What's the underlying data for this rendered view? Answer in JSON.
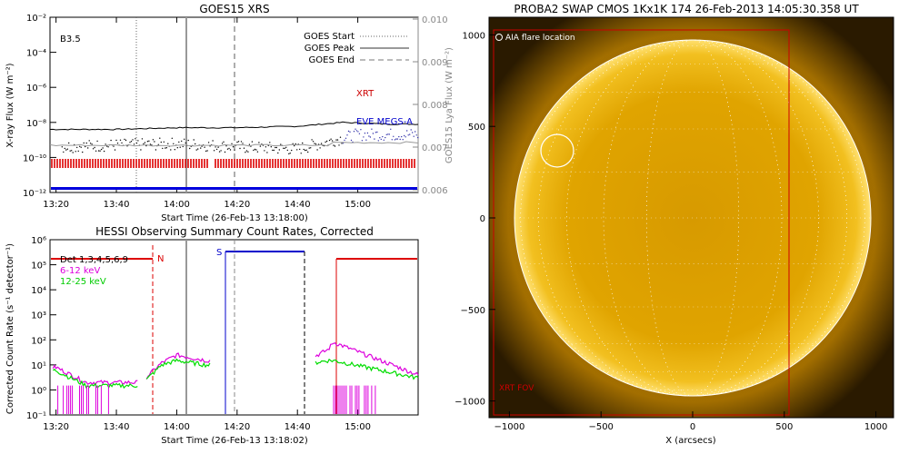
{
  "goes": {
    "title": "GOES15 XRS",
    "class_label": "B3.5",
    "ylabel_left": "X-ray Flux (W m⁻²)",
    "ylabel_right": "GOES15 Lya Flux (W m⁻²)",
    "xlabel": "Start Time (26-Feb-13 13:18:00)",
    "xticks": [
      "13:20",
      "13:40",
      "14:00",
      "14:20",
      "14:40",
      "15:00"
    ],
    "yticks_left": [
      "10⁻¹²",
      "10⁻¹⁰",
      "10⁻⁸",
      "10⁻⁶",
      "10⁻⁴",
      "10⁻²"
    ],
    "yticks_right": [
      "0.006",
      "0.007",
      "0.008",
      "0.009",
      "0.010"
    ],
    "legend": [
      "GOES Start",
      "GOES Peak",
      "GOES End"
    ],
    "label_xrt": "XRT",
    "label_eve": "EVE MEGS-A",
    "colors": {
      "xrt": "#cc0000",
      "eve": "#0000cc",
      "obs": "#dd0000",
      "blue_bar": "#0000dd"
    }
  },
  "hessi": {
    "title": "HESSI Observing Summary Count Rates, Corrected",
    "ylabel": "Corrected Count Rate (s⁻¹ detector⁻¹)",
    "xlabel": "Start Time (26-Feb-13 13:18:02)",
    "xticks": [
      "13:20",
      "13:40",
      "14:00",
      "14:20",
      "14:40",
      "15:00"
    ],
    "yticks": [
      "10⁻¹",
      "10⁰",
      "10¹",
      "10²",
      "10³",
      "10⁴",
      "10⁵",
      "10⁶"
    ],
    "legend": [
      "Det 1,3,4,5,6,9",
      "6-12 keV",
      "12-25 keV"
    ],
    "legend_colors": [
      "#000000",
      "#dd00dd",
      "#00cc00"
    ],
    "marker_n": "N",
    "marker_s": "S",
    "colors": {
      "low": "#dd00dd",
      "high": "#00dd00",
      "night": "#dd0000",
      "saa": "#0000cc"
    }
  },
  "swap": {
    "title": "PROBA2 SWAP CMOS 1Kx1K 174 26-Feb-2013 14:05:30.358 UT",
    "flare_label": "AIA flare location",
    "fov_label": "XRT FOV",
    "xlabel": "X (arcsecs)",
    "xticks": [
      "−1000",
      "−500",
      "0",
      "500",
      "1000"
    ],
    "yticks": [
      "1000",
      "500",
      "0",
      "−500",
      "−1000"
    ],
    "colors": {
      "disk": "#e8a800",
      "bg": "#2a1a00",
      "fov": "#cc0000"
    }
  },
  "chart_data": [
    {
      "type": "line",
      "title": "GOES15 XRS",
      "xlabel": "Start Time (26-Feb-13 13:18:00)",
      "ylabel": "X-ray Flux (W m⁻²)",
      "y_scale": "log",
      "ylim": [
        1e-12,
        0.01
      ],
      "xlim": [
        "13:18",
        "15:20"
      ],
      "markers": {
        "GOES Start": "13:46",
        "GOES Peak": "14:03",
        "GOES End": "14:18"
      },
      "series": [
        {
          "name": "XRT",
          "x": [
            "13:20",
            "13:40",
            "14:00",
            "14:20",
            "14:40",
            "14:55",
            "15:10",
            "15:20"
          ],
          "values": [
            4e-09,
            4e-09,
            5e-09,
            5e-09,
            6e-09,
            1e-08,
            8e-09,
            8e-09
          ]
        },
        {
          "name": "EVE MEGS-A",
          "x": [
            "13:20",
            "13:40",
            "14:00",
            "14:20",
            "14:40",
            "15:00",
            "15:20"
          ],
          "values": [
            4e-10,
            5e-10,
            6e-10,
            4e-10,
            3e-10,
            2e-09,
            2e-09
          ]
        }
      ]
    },
    {
      "type": "line",
      "title": "HESSI Observing Summary Count Rates, Corrected",
      "xlabel": "Start Time (26-Feb-13 13:18:02)",
      "ylabel": "Corrected Count Rate (s⁻¹ detector⁻¹)",
      "y_scale": "log",
      "ylim": [
        0.1,
        1000000.0
      ],
      "xlim": [
        "13:18",
        "15:20"
      ],
      "series": [
        {
          "name": "6-12 keV",
          "x": [
            "13:20",
            "13:30",
            "13:48",
            "13:55",
            "14:00",
            "14:10",
            "14:14",
            "14:45",
            "14:50",
            "14:52",
            "15:20"
          ],
          "values": [
            8,
            2,
            2,
            12,
            25,
            15,
            15,
            20,
            40,
            80,
            4
          ]
        },
        {
          "name": "12-25 keV",
          "x": [
            "13:20",
            "13:30",
            "13:48",
            "13:55",
            "14:00",
            "14:10",
            "14:14",
            "14:45",
            "14:50",
            "14:52",
            "15:20"
          ],
          "values": [
            6,
            1.5,
            1.5,
            10,
            15,
            10,
            10,
            12,
            15,
            15,
            3
          ]
        }
      ]
    }
  ]
}
